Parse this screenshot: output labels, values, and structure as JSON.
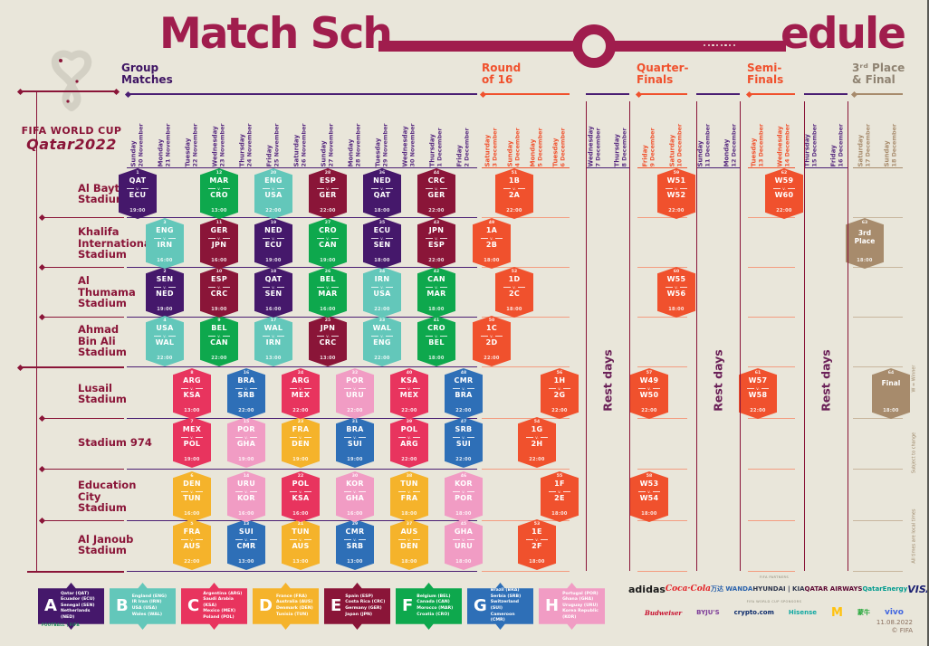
{
  "title": {
    "part1": "Match Sch",
    "part2": "edule"
  },
  "logo": {
    "line1": "FIFA WORLD CUP",
    "line2": "Qatar2022"
  },
  "theme": {
    "bg": "#E9E6DA",
    "crimson": "#A01D4D",
    "maroon": "#8A1538",
    "purple_header": "#3E1463",
    "purple_line": "#4A1E73",
    "purple_date": "#56297F",
    "orange": "#F0512D",
    "salmon": "#F49C80",
    "taupe": "#A78B6C",
    "taupe_text": "#8F8372",
    "taupe_line": "#C8B69E",
    "plum": "#6B2158",
    "note": "#9A8465"
  },
  "sections": [
    {
      "id": "group",
      "lines": "Group\nMatches"
    },
    {
      "id": "r16",
      "lines": "Round\nof 16"
    },
    {
      "id": "qf",
      "lines": "Quarter-\nFinals"
    },
    {
      "id": "sf",
      "lines": "Semi-\nFinals"
    },
    {
      "id": "final",
      "lines": "3ʳᵈ Place\n& Final"
    }
  ],
  "columns": [
    {
      "day": "Sunday",
      "date": "20 November",
      "phase": "group"
    },
    {
      "day": "Monday",
      "date": "21 November",
      "phase": "group"
    },
    {
      "day": "Tuesday",
      "date": "22 November",
      "phase": "group"
    },
    {
      "day": "Wednesday",
      "date": "23 November",
      "phase": "group"
    },
    {
      "day": "Thursday",
      "date": "24 November",
      "phase": "group"
    },
    {
      "day": "Friday",
      "date": "25 November",
      "phase": "group"
    },
    {
      "day": "Saturday",
      "date": "26 November",
      "phase": "group"
    },
    {
      "day": "Sunday",
      "date": "27 November",
      "phase": "group"
    },
    {
      "day": "Monday",
      "date": "28 November",
      "phase": "group"
    },
    {
      "day": "Tuesday",
      "date": "29 November",
      "phase": "group"
    },
    {
      "day": "Wednesday",
      "date": "30 November",
      "phase": "group"
    },
    {
      "day": "Thursday",
      "date": "1 December",
      "phase": "group"
    },
    {
      "day": "Friday",
      "date": "2 December",
      "phase": "group"
    },
    {
      "day": "Saturday",
      "date": "3 December",
      "phase": "r16"
    },
    {
      "day": "Sunday",
      "date": "4 December",
      "phase": "r16"
    },
    {
      "day": "Monday",
      "date": "5 December",
      "phase": "r16"
    },
    {
      "day": "Tuesday",
      "date": "6 December",
      "phase": "r16"
    },
    {
      "day": "Wednesday",
      "date": "7 December",
      "phase": "rest"
    },
    {
      "day": "Thursday",
      "date": "8 December",
      "phase": "rest"
    },
    {
      "day": "Friday",
      "date": "9 December",
      "phase": "qf"
    },
    {
      "day": "Saturday",
      "date": "10 December",
      "phase": "qf"
    },
    {
      "day": "Sunday",
      "date": "11 December",
      "phase": "rest"
    },
    {
      "day": "Monday",
      "date": "12 December",
      "phase": "rest"
    },
    {
      "day": "Tuesday",
      "date": "13 December",
      "phase": "sf"
    },
    {
      "day": "Wednesday",
      "date": "14 December",
      "phase": "sf"
    },
    {
      "day": "Thursday",
      "date": "15 December",
      "phase": "rest"
    },
    {
      "day": "Friday",
      "date": "16 December",
      "phase": "rest"
    },
    {
      "day": "Saturday",
      "date": "17 December",
      "phase": "final"
    },
    {
      "day": "Sunday",
      "date": "18 December",
      "phase": "final"
    }
  ],
  "stadiums": [
    "Al Bayt\nStadium",
    "Khalifa\nInternational\nStadium",
    "Al\nThumama\nStadium",
    "Ahmad\nBin Ali\nStadium",
    "Lusail\nStadium",
    "Stadium 974",
    "Education\nCity\nStadium",
    "Al Janoub\nStadium"
  ],
  "groups": {
    "A": {
      "color": "#45186B",
      "teams": [
        "Qatar (QAT)",
        "Ecuador (ECU)",
        "Senegal (SEN)",
        "Netherlands (NED)"
      ]
    },
    "B": {
      "color": "#63C7BA",
      "teams": [
        "England (ENG)",
        "IR Iran (IRN)",
        "USA (USA)",
        "Wales (WAL)"
      ]
    },
    "C": {
      "color": "#E8345E",
      "teams": [
        "Argentina (ARG)",
        "Saudi Arabia (KSA)",
        "Mexico (MEX)",
        "Poland (POL)"
      ]
    },
    "D": {
      "color": "#F5B32B",
      "teams": [
        "France (FRA)",
        "Australia (AUS)",
        "Denmark (DEN)",
        "Tunisia (TUN)"
      ]
    },
    "E": {
      "color": "#8A1538",
      "teams": [
        "Spain (ESP)",
        "Costa Rica (CRC)",
        "Germany (GER)",
        "Japan (JPN)"
      ]
    },
    "F": {
      "color": "#0EA84D",
      "teams": [
        "Belgium (BEL)",
        "Canada (CAN)",
        "Morocco (MAR)",
        "Croatia (CRO)"
      ]
    },
    "G": {
      "color": "#2E6FB7",
      "teams": [
        "Brazil (BRA)",
        "Serbia (SRB)",
        "Switzerland (SUI)",
        "Cameroon (CMR)"
      ]
    },
    "H": {
      "color": "#F19CC4",
      "teams": [
        "Portugal (POR)",
        "Ghana (GHA)",
        "Uruguay (URU)",
        "Korea Republic (KOR)"
      ]
    }
  },
  "matches": [
    {
      "n": 1,
      "row": 0,
      "col": 0,
      "a": "QAT",
      "b": "ECU",
      "t": "19:00",
      "g": "A"
    },
    {
      "n": 2,
      "row": 2,
      "col": 1,
      "a": "SEN",
      "b": "NED",
      "t": "19:00",
      "g": "A"
    },
    {
      "n": 3,
      "row": 1,
      "col": 1,
      "a": "ENG",
      "b": "IRN",
      "t": "16:00",
      "g": "B"
    },
    {
      "n": 4,
      "row": 3,
      "col": 1,
      "a": "USA",
      "b": "WAL",
      "t": "22:00",
      "g": "B"
    },
    {
      "n": 5,
      "row": 7,
      "col": 2,
      "a": "FRA",
      "b": "AUS",
      "t": "22:00",
      "g": "D"
    },
    {
      "n": 6,
      "row": 6,
      "col": 2,
      "a": "DEN",
      "b": "TUN",
      "t": "16:00",
      "g": "D"
    },
    {
      "n": 7,
      "row": 5,
      "col": 2,
      "a": "MEX",
      "b": "POL",
      "t": "19:00",
      "g": "C"
    },
    {
      "n": 8,
      "row": 4,
      "col": 2,
      "a": "ARG",
      "b": "KSA",
      "t": "13:00",
      "g": "C"
    },
    {
      "n": 9,
      "row": 3,
      "col": 3,
      "a": "BEL",
      "b": "CAN",
      "t": "22:00",
      "g": "F"
    },
    {
      "n": 10,
      "row": 2,
      "col": 3,
      "a": "ESP",
      "b": "CRC",
      "t": "19:00",
      "g": "E"
    },
    {
      "n": 11,
      "row": 1,
      "col": 3,
      "a": "GER",
      "b": "JPN",
      "t": "16:00",
      "g": "E"
    },
    {
      "n": 12,
      "row": 0,
      "col": 3,
      "a": "MAR",
      "b": "CRO",
      "t": "13:00",
      "g": "F"
    },
    {
      "n": 13,
      "row": 7,
      "col": 4,
      "a": "SUI",
      "b": "CMR",
      "t": "13:00",
      "g": "G"
    },
    {
      "n": 14,
      "row": 6,
      "col": 4,
      "a": "URU",
      "b": "KOR",
      "t": "16:00",
      "g": "H"
    },
    {
      "n": 15,
      "row": 5,
      "col": 4,
      "a": "POR",
      "b": "GHA",
      "t": "19:00",
      "g": "H"
    },
    {
      "n": 16,
      "row": 4,
      "col": 4,
      "a": "BRA",
      "b": "SRB",
      "t": "22:00",
      "g": "G"
    },
    {
      "n": 17,
      "row": 3,
      "col": 5,
      "a": "WAL",
      "b": "IRN",
      "t": "13:00",
      "g": "B"
    },
    {
      "n": 18,
      "row": 2,
      "col": 5,
      "a": "QAT",
      "b": "SEN",
      "t": "16:00",
      "g": "A"
    },
    {
      "n": 19,
      "row": 1,
      "col": 5,
      "a": "NED",
      "b": "ECU",
      "t": "19:00",
      "g": "A"
    },
    {
      "n": 20,
      "row": 0,
      "col": 5,
      "a": "ENG",
      "b": "USA",
      "t": "22:00",
      "g": "B"
    },
    {
      "n": 21,
      "row": 7,
      "col": 6,
      "a": "TUN",
      "b": "AUS",
      "t": "13:00",
      "g": "D"
    },
    {
      "n": 22,
      "row": 6,
      "col": 6,
      "a": "POL",
      "b": "KSA",
      "t": "16:00",
      "g": "C"
    },
    {
      "n": 23,
      "row": 5,
      "col": 6,
      "a": "FRA",
      "b": "DEN",
      "t": "19:00",
      "g": "D"
    },
    {
      "n": 24,
      "row": 4,
      "col": 6,
      "a": "ARG",
      "b": "MEX",
      "t": "22:00",
      "g": "C"
    },
    {
      "n": 25,
      "row": 3,
      "col": 7,
      "a": "JPN",
      "b": "CRC",
      "t": "13:00",
      "g": "E"
    },
    {
      "n": 26,
      "row": 2,
      "col": 7,
      "a": "BEL",
      "b": "MAR",
      "t": "16:00",
      "g": "F"
    },
    {
      "n": 27,
      "row": 1,
      "col": 7,
      "a": "CRO",
      "b": "CAN",
      "t": "19:00",
      "g": "F"
    },
    {
      "n": 28,
      "row": 0,
      "col": 7,
      "a": "ESP",
      "b": "GER",
      "t": "22:00",
      "g": "E"
    },
    {
      "n": 29,
      "row": 7,
      "col": 8,
      "a": "CMR",
      "b": "SRB",
      "t": "13:00",
      "g": "G"
    },
    {
      "n": 30,
      "row": 6,
      "col": 8,
      "a": "KOR",
      "b": "GHA",
      "t": "16:00",
      "g": "H"
    },
    {
      "n": 31,
      "row": 5,
      "col": 8,
      "a": "BRA",
      "b": "SUI",
      "t": "19:00",
      "g": "G"
    },
    {
      "n": 32,
      "row": 4,
      "col": 8,
      "a": "POR",
      "b": "URU",
      "t": "22:00",
      "g": "H"
    },
    {
      "n": 33,
      "row": 3,
      "col": 9,
      "a": "WAL",
      "b": "ENG",
      "t": "22:00",
      "g": "B"
    },
    {
      "n": 34,
      "row": 2,
      "col": 9,
      "a": "IRN",
      "b": "USA",
      "t": "22:00",
      "g": "B"
    },
    {
      "n": 35,
      "row": 1,
      "col": 9,
      "a": "ECU",
      "b": "SEN",
      "t": "18:00",
      "g": "A"
    },
    {
      "n": 36,
      "row": 0,
      "col": 9,
      "a": "NED",
      "b": "QAT",
      "t": "18:00",
      "g": "A"
    },
    {
      "n": 37,
      "row": 7,
      "col": 10,
      "a": "AUS",
      "b": "DEN",
      "t": "18:00",
      "g": "D"
    },
    {
      "n": 38,
      "row": 6,
      "col": 10,
      "a": "TUN",
      "b": "FRA",
      "t": "18:00",
      "g": "D"
    },
    {
      "n": 39,
      "row": 5,
      "col": 10,
      "a": "POL",
      "b": "ARG",
      "t": "22:00",
      "g": "C"
    },
    {
      "n": 40,
      "row": 4,
      "col": 10,
      "a": "KSA",
      "b": "MEX",
      "t": "22:00",
      "g": "C"
    },
    {
      "n": 41,
      "row": 3,
      "col": 11,
      "a": "CRO",
      "b": "BEL",
      "t": "18:00",
      "g": "F"
    },
    {
      "n": 42,
      "row": 2,
      "col": 11,
      "a": "CAN",
      "b": "MAR",
      "t": "18:00",
      "g": "F"
    },
    {
      "n": 43,
      "row": 1,
      "col": 11,
      "a": "JPN",
      "b": "ESP",
      "t": "22:00",
      "g": "E"
    },
    {
      "n": 44,
      "row": 0,
      "col": 11,
      "a": "CRC",
      "b": "GER",
      "t": "22:00",
      "g": "E"
    },
    {
      "n": 45,
      "row": 7,
      "col": 12,
      "a": "GHA",
      "b": "URU",
      "t": "18:00",
      "g": "H"
    },
    {
      "n": 46,
      "row": 6,
      "col": 12,
      "a": "KOR",
      "b": "POR",
      "t": "18:00",
      "g": "H"
    },
    {
      "n": 47,
      "row": 5,
      "col": 12,
      "a": "SRB",
      "b": "SUI",
      "t": "22:00",
      "g": "G"
    },
    {
      "n": 48,
      "row": 4,
      "col": 12,
      "a": "CMR",
      "b": "BRA",
      "t": "22:00",
      "g": "G"
    },
    {
      "n": 49,
      "row": 1,
      "col": 13,
      "a": "1A",
      "b": "2B",
      "t": "18:00",
      "g": "KO"
    },
    {
      "n": 50,
      "row": 3,
      "col": 13,
      "a": "1C",
      "b": "2D",
      "t": "22:00",
      "g": "KO"
    },
    {
      "n": 51,
      "row": 0,
      "col": 14,
      "a": "1B",
      "b": "2A",
      "t": "22:00",
      "g": "KO"
    },
    {
      "n": 52,
      "row": 2,
      "col": 14,
      "a": "1D",
      "b": "2C",
      "t": "18:00",
      "g": "KO"
    },
    {
      "n": 53,
      "row": 7,
      "col": 15,
      "a": "1E",
      "b": "2F",
      "t": "18:00",
      "g": "KO"
    },
    {
      "n": 54,
      "row": 5,
      "col": 15,
      "a": "1G",
      "b": "2H",
      "t": "22:00",
      "g": "KO"
    },
    {
      "n": 55,
      "row": 6,
      "col": 16,
      "a": "1F",
      "b": "2E",
      "t": "18:00",
      "g": "KO"
    },
    {
      "n": 56,
      "row": 4,
      "col": 16,
      "a": "1H",
      "b": "2G",
      "t": "22:00",
      "g": "KO"
    },
    {
      "n": 57,
      "row": 4,
      "col": 19,
      "a": "W49",
      "b": "W50",
      "t": "22:00",
      "g": "KO"
    },
    {
      "n": 58,
      "row": 6,
      "col": 19,
      "a": "W53",
      "b": "W54",
      "t": "18:00",
      "g": "KO"
    },
    {
      "n": 59,
      "row": 0,
      "col": 20,
      "a": "W51",
      "b": "W52",
      "t": "22:00",
      "g": "KO"
    },
    {
      "n": 60,
      "row": 2,
      "col": 20,
      "a": "W55",
      "b": "W56",
      "t": "18:00",
      "g": "KO"
    },
    {
      "n": 61,
      "row": 4,
      "col": 23,
      "a": "W57",
      "b": "W58",
      "t": "22:00",
      "g": "KO"
    },
    {
      "n": 62,
      "row": 0,
      "col": 24,
      "a": "W59",
      "b": "W60",
      "t": "22:00",
      "g": "KO"
    },
    {
      "n": 63,
      "row": 1,
      "col": 27,
      "label": "3rd\nPlace",
      "t": "18:00",
      "g": "FX"
    },
    {
      "n": 64,
      "row": 4,
      "col": 28,
      "label": "Final",
      "t": "18:00",
      "g": "FX"
    }
  ],
  "rest_days_label": "Rest days",
  "side_notes": [
    "W = Winner",
    "Subject to change",
    "All times are local times"
  ],
  "legend": [
    {
      "letter": "A"
    },
    {
      "letter": "B"
    },
    {
      "letter": "C"
    },
    {
      "letter": "D"
    },
    {
      "letter": "E"
    },
    {
      "letter": "F"
    },
    {
      "letter": "G"
    },
    {
      "letter": "H"
    }
  ],
  "footer": {
    "partners_label": "FIFA PARTNERS",
    "partners": [
      {
        "name": "adidas",
        "display": "adidas",
        "color": "#1A1A1A"
      },
      {
        "name": "Coca-Cola",
        "display": "Coca·Cola",
        "color": "#E32227"
      },
      {
        "name": "Wanda",
        "display": "万达 WANDA",
        "color": "#2A62AC"
      },
      {
        "name": "Hyundai-Kia",
        "display": "HYUNDAI | KIA",
        "color": "#30384F"
      },
      {
        "name": "Qatar Airways",
        "display": "QATAR AIRWAYS",
        "color": "#5C0632"
      },
      {
        "name": "QatarEnergy",
        "display": "QatarEnergy",
        "color": "#009B8F"
      },
      {
        "name": "Visa",
        "display": "VISA",
        "color": "#1A1F71"
      }
    ],
    "sponsors_label": "FIFA WORLD CUP SPONSORS",
    "sponsors": [
      {
        "name": "Budweiser",
        "display": "Budweiser",
        "color": "#C8102E"
      },
      {
        "name": "BYJU'S",
        "display": "BYJU'S",
        "color": "#7D3C98"
      },
      {
        "name": "crypto.com",
        "display": "crypto.com",
        "color": "#0B2A6B"
      },
      {
        "name": "Hisense",
        "display": "Hisense",
        "color": "#11A8A2"
      },
      {
        "name": "McDonald's",
        "display": "M",
        "color": "#FFC20E"
      },
      {
        "name": "Mengniu",
        "display": "蒙牛",
        "color": "#27A83C"
      },
      {
        "name": "vivo",
        "display": "vivo",
        "color": "#4166E0"
      }
    ],
    "left_mark": "FOOTBALL | FIFA",
    "date": "11.08.2022",
    "copyright": "© FIFA"
  }
}
